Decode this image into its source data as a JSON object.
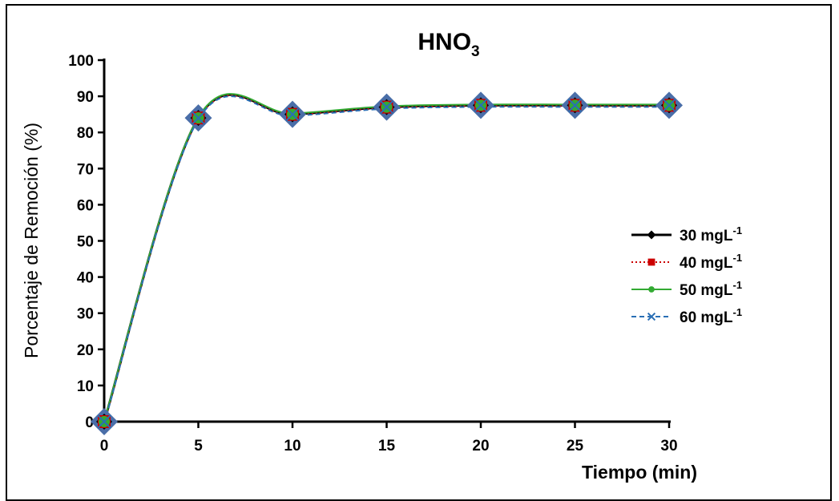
{
  "chart_data": {
    "type": "line",
    "title": {
      "base": "HNO",
      "sub": "3"
    },
    "xlabel": "Tiempo (min)",
    "ylabel": "Porcentaje de Remoción (%)",
    "x": [
      0,
      5,
      10,
      15,
      20,
      25,
      30
    ],
    "xticks": [
      "0",
      "5",
      "10",
      "15",
      "20",
      "25",
      "30"
    ],
    "yticks": [
      "0",
      "10",
      "20",
      "30",
      "40",
      "50",
      "60",
      "70",
      "80",
      "90",
      "100"
    ],
    "xlim": [
      0,
      30
    ],
    "ylim": [
      0,
      100
    ],
    "grid": false,
    "legend_position": "right",
    "series": [
      {
        "name": "30 mgL",
        "sup": "-1",
        "values": [
          0,
          84,
          85,
          87,
          87.5,
          87.5,
          87.5
        ],
        "color": "#000000",
        "marker": "diamond",
        "dash": "none"
      },
      {
        "name": "40 mgL",
        "sup": "-1",
        "values": [
          0,
          84,
          85,
          87,
          87.5,
          87.5,
          87.5
        ],
        "color": "#cc0000",
        "marker": "square",
        "dash": "dotted"
      },
      {
        "name": "50 mgL",
        "sup": "-1",
        "values": [
          0,
          84,
          85,
          87,
          87.5,
          87.5,
          87.5
        ],
        "color": "#33aa33",
        "marker": "circle",
        "dash": "none"
      },
      {
        "name": "60 mgL",
        "sup": "-1",
        "values": [
          0,
          84,
          85,
          87,
          87.5,
          87.5,
          87.5
        ],
        "color": "#2a6fb5",
        "marker": "x",
        "dash": "dashed"
      }
    ]
  }
}
